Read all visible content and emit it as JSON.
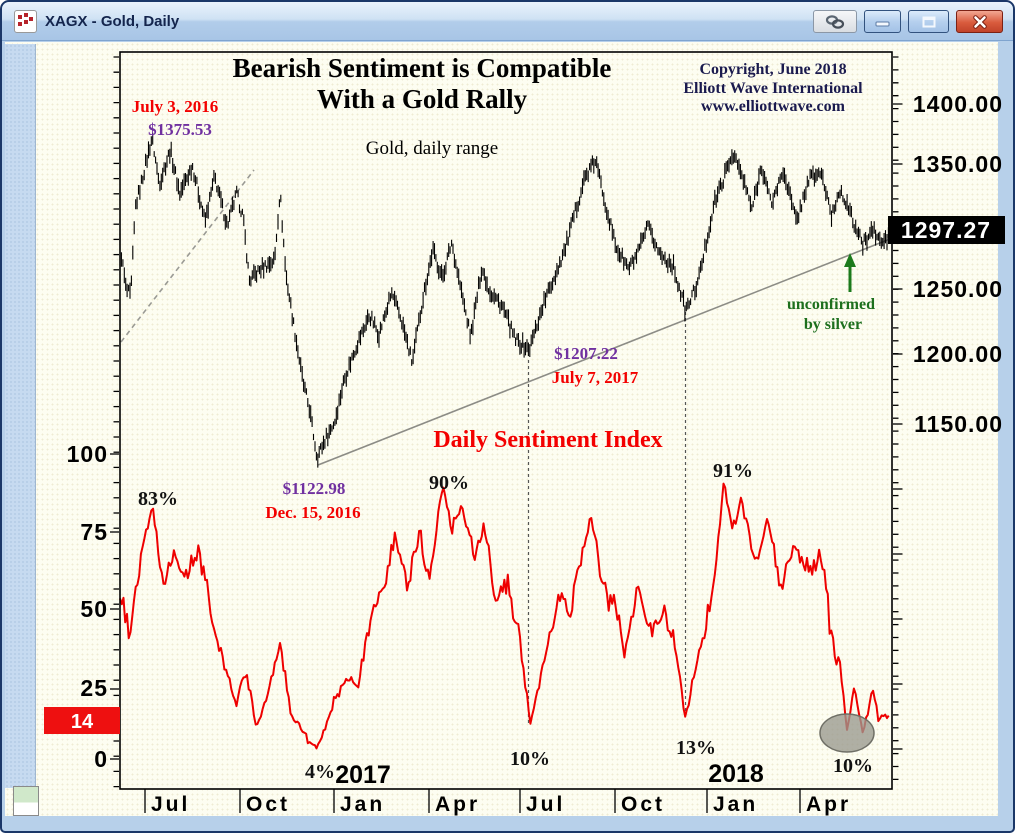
{
  "window": {
    "title": "XAGX - Gold, Daily",
    "buttons": [
      {
        "name": "link"
      },
      {
        "name": "minimize"
      },
      {
        "name": "maximize"
      },
      {
        "name": "close"
      }
    ]
  },
  "header": {
    "title_line1": "Bearish Sentiment is Compatible",
    "title_line2": "With a Gold Rally",
    "subtitle": "Gold, daily range",
    "copyright_line1": "Copyright, June 2018",
    "copyright_line2": "Elliott Wave International",
    "copyright_line3": "www.elliottwave.com"
  },
  "axes": {
    "price_ticks": [
      "1400.00",
      "1350.00",
      "1250.00",
      "1200.00",
      "1150.00"
    ],
    "price_box": "1297.27",
    "sentiment_ticks": [
      "100",
      "75",
      "50",
      "25",
      "0"
    ],
    "sentiment_box": "14",
    "months": [
      "Jul",
      "Oct",
      "Jan",
      "Apr",
      "Jul",
      "Oct",
      "Jan",
      "Apr"
    ],
    "years": [
      "2017",
      "2018"
    ]
  },
  "annotations": {
    "peak_date": "July 3, 2016",
    "peak_price": "$1375.53",
    "low1_price": "$1122.98",
    "low1_date": "Dec. 15, 2016",
    "low2_price": "$1207.22",
    "low2_date": "July 7, 2017",
    "dsi_title": "Daily Sentiment Index",
    "unconfirmed_line1": "unconfirmed",
    "unconfirmed_line2": "by silver",
    "pct_labels": [
      "83%",
      "90%",
      "91%",
      "4%",
      "10%",
      "13%",
      "10%"
    ]
  },
  "colors": {
    "price_series": "#000000",
    "sentiment_series": "#ee0000",
    "sentiment_box_bg": "#ee1010",
    "price_box_bg": "#000000",
    "annotation_red": "#f30000",
    "annotation_purple": "#7030a0",
    "annotation_green": "#1d6f1d"
  },
  "chart_data": {
    "type": "combo",
    "title": "Bearish Sentiment is Compatible With a Gold Rally",
    "x_axis": {
      "x_unit": "months after the Jul 2016 tick",
      "tick_labels": [
        "Jul",
        "Oct",
        "Jan",
        "Apr",
        "Jul",
        "Oct",
        "Jan",
        "Apr"
      ],
      "year_labels": [
        "2017",
        "2018"
      ],
      "range": [
        "Jun 2016",
        "Jun 2018"
      ]
    },
    "panels": [
      {
        "name": "Gold, daily range",
        "type": "bar",
        "color": "#000000",
        "axis_side": "right",
        "axis_ticks": [
          1400,
          1350,
          1250,
          1200,
          1150
        ],
        "ylim": [
          1100,
          1430
        ],
        "last_price": 1297.27,
        "key_points": [
          {
            "date": "July 3, 2016",
            "price": 1375.53
          },
          {
            "date": "Dec. 15, 2016",
            "price": 1122.98
          },
          {
            "date": "July 7, 2017",
            "price": 1207.22
          },
          {
            "date": "current",
            "price": 1297.27
          }
        ],
        "points": [
          [
            -0.79,
            1290
          ],
          [
            -0.6,
            1255
          ],
          [
            -0.45,
            1250
          ],
          [
            -0.3,
            1320
          ],
          [
            -0.1,
            1340
          ],
          [
            0.22,
            1374
          ],
          [
            0.45,
            1338
          ],
          [
            0.8,
            1364
          ],
          [
            1.1,
            1330
          ],
          [
            1.5,
            1352
          ],
          [
            1.9,
            1308
          ],
          [
            2.2,
            1343
          ],
          [
            2.6,
            1305
          ],
          [
            2.9,
            1330
          ],
          [
            3.1,
            1312
          ],
          [
            3.3,
            1262
          ],
          [
            3.7,
            1272
          ],
          [
            4.1,
            1278
          ],
          [
            4.27,
            1332
          ],
          [
            4.45,
            1268
          ],
          [
            4.7,
            1228
          ],
          [
            5.0,
            1182
          ],
          [
            5.2,
            1162
          ],
          [
            5.44,
            1124
          ],
          [
            5.7,
            1138
          ],
          [
            6.0,
            1152
          ],
          [
            6.3,
            1185
          ],
          [
            6.7,
            1212
          ],
          [
            7.1,
            1235
          ],
          [
            7.4,
            1220
          ],
          [
            7.8,
            1252
          ],
          [
            8.1,
            1232
          ],
          [
            8.45,
            1198
          ],
          [
            8.8,
            1250
          ],
          [
            9.1,
            1286
          ],
          [
            9.4,
            1264
          ],
          [
            9.7,
            1292
          ],
          [
            10.0,
            1254
          ],
          [
            10.3,
            1218
          ],
          [
            10.65,
            1272
          ],
          [
            10.9,
            1254
          ],
          [
            11.3,
            1242
          ],
          [
            11.7,
            1216
          ],
          [
            12.15,
            1208
          ],
          [
            12.6,
            1244
          ],
          [
            12.9,
            1262
          ],
          [
            13.3,
            1288
          ],
          [
            13.9,
            1342
          ],
          [
            14.25,
            1356
          ],
          [
            14.6,
            1318
          ],
          [
            14.9,
            1288
          ],
          [
            15.3,
            1271
          ],
          [
            15.6,
            1284
          ],
          [
            15.9,
            1304
          ],
          [
            16.3,
            1282
          ],
          [
            16.7,
            1274
          ],
          [
            17.1,
            1238
          ],
          [
            17.5,
            1262
          ],
          [
            18.0,
            1322
          ],
          [
            18.6,
            1362
          ],
          [
            18.9,
            1342
          ],
          [
            19.2,
            1318
          ],
          [
            19.5,
            1352
          ],
          [
            19.8,
            1322
          ],
          [
            20.2,
            1348
          ],
          [
            20.6,
            1308
          ],
          [
            21.0,
            1342
          ],
          [
            21.4,
            1346
          ],
          [
            21.7,
            1312
          ],
          [
            22.0,
            1334
          ],
          [
            22.4,
            1308
          ],
          [
            22.7,
            1290
          ],
          [
            23.0,
            1302
          ],
          [
            23.3,
            1291
          ],
          [
            23.55,
            1297.27
          ]
        ]
      },
      {
        "name": "Daily Sentiment Index",
        "type": "line",
        "color": "#ee0000",
        "axis_side": "left",
        "axis_ticks": [
          100,
          75,
          50,
          25,
          0
        ],
        "ylim": [
          0,
          100
        ],
        "last_value": 14,
        "key_points": [
          {
            "label": "83%",
            "when": "Jul 2016"
          },
          {
            "label": "4%",
            "when": "Dec 2016"
          },
          {
            "label": "90%",
            "when": "Apr 2017"
          },
          {
            "label": "10%",
            "when": "Jul 2017"
          },
          {
            "label": "13%",
            "when": "Dec 2017"
          },
          {
            "label": "91%",
            "when": "Jan 2018"
          },
          {
            "label": "10%",
            "when": "May 2018"
          }
        ],
        "points": [
          [
            -0.79,
            57
          ],
          [
            -0.5,
            44
          ],
          [
            -0.15,
            66
          ],
          [
            0.25,
            83
          ],
          [
            0.6,
            54
          ],
          [
            0.9,
            67
          ],
          [
            1.3,
            58
          ],
          [
            1.7,
            71
          ],
          [
            2.1,
            44
          ],
          [
            2.5,
            30
          ],
          [
            2.9,
            17
          ],
          [
            3.2,
            28
          ],
          [
            3.5,
            12
          ],
          [
            3.9,
            22
          ],
          [
            4.27,
            36
          ],
          [
            4.6,
            15
          ],
          [
            5.0,
            8
          ],
          [
            5.44,
            4
          ],
          [
            5.9,
            16
          ],
          [
            6.3,
            28
          ],
          [
            6.7,
            22
          ],
          [
            7.1,
            40
          ],
          [
            7.5,
            56
          ],
          [
            7.9,
            70
          ],
          [
            8.3,
            54
          ],
          [
            8.7,
            73
          ],
          [
            9.0,
            62
          ],
          [
            9.4,
            90
          ],
          [
            9.7,
            74
          ],
          [
            10.0,
            82
          ],
          [
            10.4,
            67
          ],
          [
            10.7,
            78
          ],
          [
            11.1,
            50
          ],
          [
            11.5,
            60
          ],
          [
            11.9,
            34
          ],
          [
            12.2,
            10
          ],
          [
            12.6,
            30
          ],
          [
            13.0,
            53
          ],
          [
            13.4,
            45
          ],
          [
            13.8,
            68
          ],
          [
            14.1,
            78
          ],
          [
            14.4,
            62
          ],
          [
            14.8,
            50
          ],
          [
            15.2,
            37
          ],
          [
            15.6,
            56
          ],
          [
            16.0,
            42
          ],
          [
            16.4,
            52
          ],
          [
            16.8,
            34
          ],
          [
            17.1,
            13
          ],
          [
            17.6,
            40
          ],
          [
            18.0,
            62
          ],
          [
            18.3,
            91
          ],
          [
            18.55,
            74
          ],
          [
            18.85,
            86
          ],
          [
            19.3,
            64
          ],
          [
            19.7,
            78
          ],
          [
            20.1,
            57
          ],
          [
            20.5,
            70
          ],
          [
            20.9,
            61
          ],
          [
            21.3,
            68
          ],
          [
            21.7,
            44
          ],
          [
            22.0,
            30
          ],
          [
            22.2,
            10
          ],
          [
            22.45,
            25
          ],
          [
            22.7,
            8
          ],
          [
            23.0,
            22
          ],
          [
            23.2,
            12
          ],
          [
            23.55,
            14
          ]
        ]
      }
    ],
    "overlays": {
      "solid_trendline": "rising support line from Dec 15 2016 low to current price",
      "dashed_trendline": "short rising dashed line into the July 2016 high",
      "vertical_connectors": [
        "July 2017 price low to 10% sentiment low",
        "Dec 2017 price low to 13% sentiment low"
      ],
      "ellipse_highlight": "gray ellipse around May 2018 sentiment lows near 10%",
      "arrow_note": "green up arrow at current price: unconfirmed by silver"
    }
  }
}
